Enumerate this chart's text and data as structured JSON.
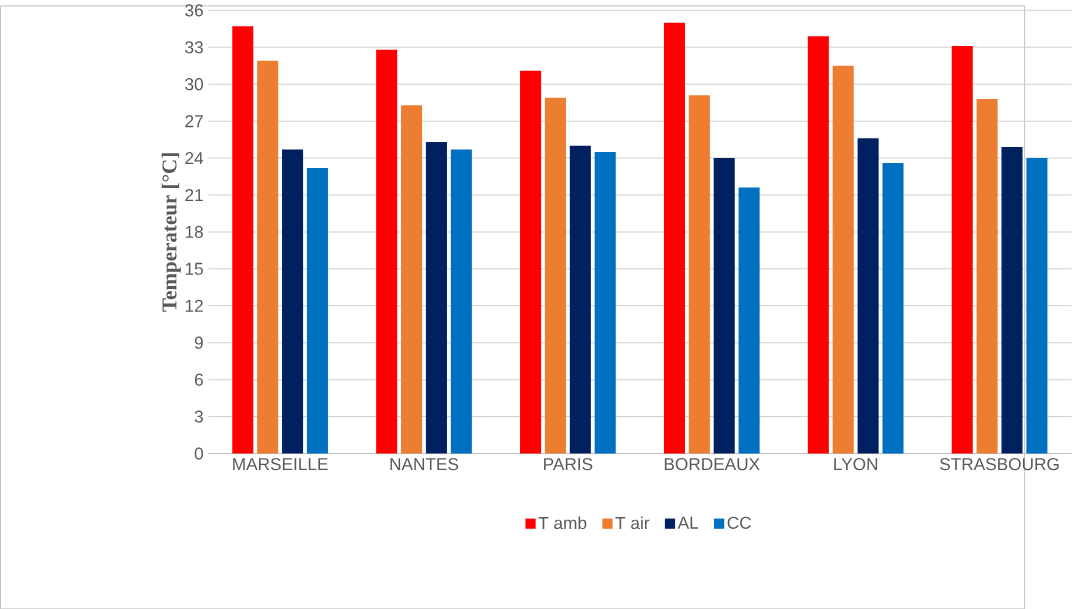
{
  "chart_data": {
    "type": "bar",
    "ylabel": "Temperateur [°C]",
    "categories": [
      "MARSEILLE",
      "NANTES",
      "PARIS",
      "BORDEAUX",
      "LYON",
      "STRASBOURG"
    ],
    "series": [
      {
        "name": "T amb",
        "color": "#ff0000",
        "values": [
          34.7,
          32.8,
          31.1,
          35.0,
          33.9,
          33.1
        ]
      },
      {
        "name": "T air",
        "color": "#ed7d31",
        "values": [
          31.9,
          28.3,
          28.9,
          29.1,
          31.5,
          28.8
        ]
      },
      {
        "name": "AL",
        "color": "#002060",
        "values": [
          24.7,
          25.3,
          25.0,
          24.0,
          25.6,
          24.9
        ]
      },
      {
        "name": "CC",
        "color": "#0070c0",
        "values": [
          23.2,
          24.7,
          24.5,
          21.6,
          23.6,
          24.0
        ]
      }
    ],
    "ylim": [
      0,
      36
    ],
    "yticks": [
      0,
      3,
      6,
      9,
      12,
      15,
      18,
      21,
      24,
      27,
      30,
      33,
      36
    ],
    "grid": "y",
    "legend": "bottom"
  }
}
